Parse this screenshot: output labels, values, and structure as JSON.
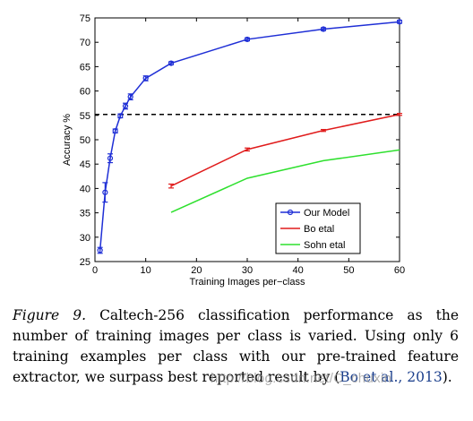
{
  "chart_data": {
    "type": "line",
    "title": "",
    "xlabel": "Training Images per−class",
    "ylabel": "Accuracy %",
    "xlim": [
      0,
      60
    ],
    "ylim": [
      25,
      75
    ],
    "xticks": [
      0,
      10,
      20,
      30,
      40,
      50,
      60
    ],
    "yticks": [
      25,
      30,
      35,
      40,
      45,
      50,
      55,
      60,
      65,
      70,
      75
    ],
    "legend_position": "bottom-right",
    "grid": false,
    "reference_line": {
      "y": 55.2,
      "style": "dashed",
      "color": "#000000"
    },
    "series": [
      {
        "name": "Our Model",
        "color": "#1f2fd6",
        "marker": "circle",
        "x": [
          1,
          2,
          3,
          4,
          5,
          6,
          7,
          10,
          15,
          30,
          45,
          60
        ],
        "y": [
          27.3,
          39.2,
          46.2,
          51.8,
          54.9,
          56.9,
          58.8,
          62.6,
          65.7,
          70.6,
          72.7,
          74.2
        ],
        "err": [
          0.6,
          2.0,
          0.9,
          0.4,
          0.4,
          0.6,
          0.6,
          0.5,
          0.3,
          0.3,
          0.3,
          0.3
        ]
      },
      {
        "name": "Bo etal",
        "color": "#e01b1b",
        "marker": "none",
        "x": [
          15,
          30,
          45,
          60
        ],
        "y": [
          40.5,
          48.0,
          51.9,
          55.2
        ],
        "err": [
          0.4,
          0.3,
          0.2,
          0.2
        ]
      },
      {
        "name": "Sohn etal",
        "color": "#2ee02e",
        "marker": "none",
        "x": [
          15,
          30,
          45,
          60
        ],
        "y": [
          35.1,
          42.1,
          45.7,
          47.9
        ],
        "err": [
          0,
          0,
          0,
          0
        ]
      }
    ]
  },
  "caption": {
    "label": "Figure 9.",
    "text": " Caltech-256 classification performance as the number of training images per class is varied. Using only 6 training examples per class with our pre-trained feature extractor, we surpass best reported result by (",
    "cite": "Bo et al., 2013",
    "text_end": ")."
  },
  "watermark": "http://blog.csdn.net/C_chuxin"
}
